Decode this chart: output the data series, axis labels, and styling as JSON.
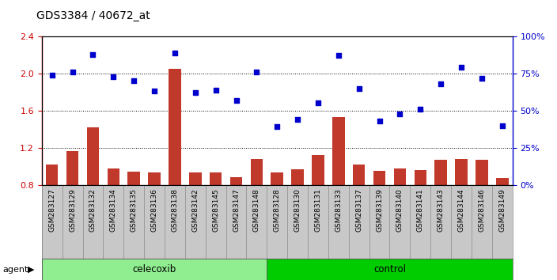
{
  "title": "GDS3384 / 40672_at",
  "samples": [
    "GSM283127",
    "GSM283129",
    "GSM283132",
    "GSM283134",
    "GSM283135",
    "GSM283136",
    "GSM283138",
    "GSM283142",
    "GSM283145",
    "GSM283147",
    "GSM283148",
    "GSM283128",
    "GSM283130",
    "GSM283131",
    "GSM283133",
    "GSM283137",
    "GSM283139",
    "GSM283140",
    "GSM283141",
    "GSM283143",
    "GSM283144",
    "GSM283146",
    "GSM283149"
  ],
  "transformed_count": [
    1.02,
    1.16,
    1.42,
    0.98,
    0.94,
    0.93,
    2.05,
    0.93,
    0.93,
    0.88,
    1.08,
    0.93,
    0.97,
    1.12,
    1.53,
    1.02,
    0.95,
    0.98,
    0.96,
    1.07,
    1.08,
    1.07,
    0.87
  ],
  "percentile_rank": [
    74,
    76,
    88,
    73,
    70,
    63,
    89,
    62,
    64,
    57,
    76,
    39,
    44,
    55,
    87,
    65,
    43,
    48,
    51,
    68,
    79,
    72,
    40
  ],
  "group": [
    "celecoxib",
    "celecoxib",
    "celecoxib",
    "celecoxib",
    "celecoxib",
    "celecoxib",
    "celecoxib",
    "celecoxib",
    "celecoxib",
    "celecoxib",
    "celecoxib",
    "control",
    "control",
    "control",
    "control",
    "control",
    "control",
    "control",
    "control",
    "control",
    "control",
    "control",
    "control"
  ],
  "ylim_left": [
    0.8,
    2.4
  ],
  "ylim_right": [
    0,
    100
  ],
  "yticks_left": [
    0.8,
    1.2,
    1.6,
    2.0,
    2.4
  ],
  "yticks_right": [
    0,
    25,
    50,
    75,
    100
  ],
  "bar_color": "#C0392B",
  "scatter_color": "#0000CC",
  "celecoxib_color": "#90EE90",
  "control_color": "#00CC00",
  "tick_area_color": "#C8C8C8",
  "grid_yticks": [
    1.2,
    1.6,
    2.0
  ]
}
